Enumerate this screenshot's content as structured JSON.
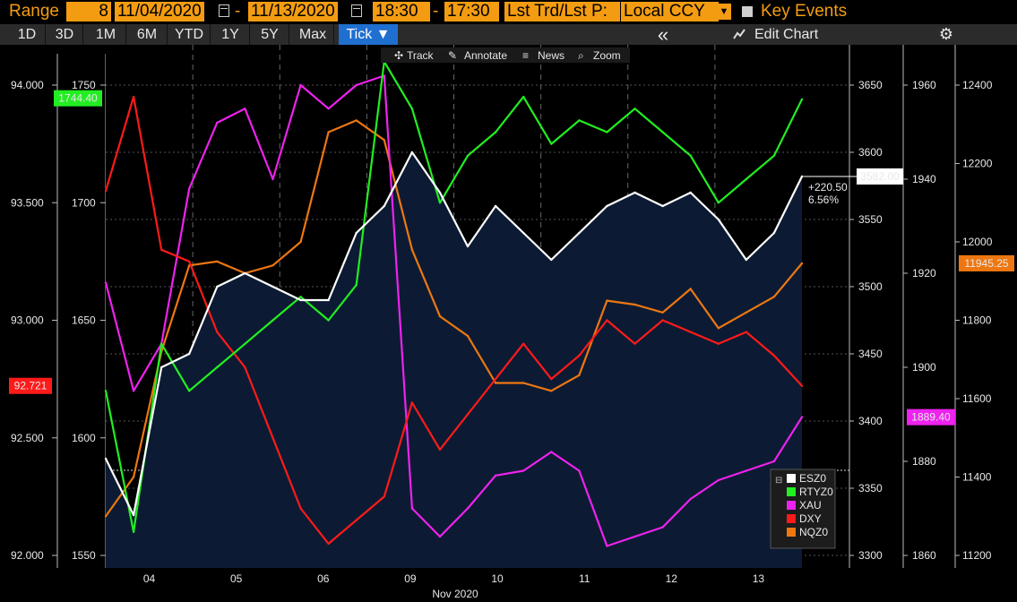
{
  "toolbar": {
    "range_label": "Range",
    "range_count": "8",
    "start_date": "11/04/2020",
    "dash": "-",
    "end_date": "11/13/2020",
    "start_time": "18:30",
    "end_time": "17:30",
    "price_type": "Lst Trd/Lst P:",
    "currency": "Local CCY",
    "key_events_label": "Key Events"
  },
  "range_buttons": [
    "1D",
    "3D",
    "1M",
    "6M",
    "YTD",
    "1Y",
    "5Y",
    "Max"
  ],
  "tick_button": "Tick ▼",
  "collapse_icon": "«",
  "edit_chart": "Edit Chart",
  "chart_tools": {
    "track": "Track",
    "annotate": "Annotate",
    "news": "News",
    "zoom": "Zoom"
  },
  "colors": {
    "ESZ0": "#ffffff",
    "RTYZ0": "#22ee22",
    "XAU": "#ee22ee",
    "DXY": "#ff1a1a",
    "NQZ0": "#ee7711",
    "area": "#0c1b33"
  },
  "chart_data": {
    "type": "line",
    "xlabel": "Nov 2020",
    "day_labels": [
      "04",
      "05",
      "06",
      "09",
      "10",
      "11",
      "12",
      "13"
    ],
    "axes": {
      "DXY": {
        "ticks": [
          "92.000",
          "92.500",
          "93.000",
          "93.500",
          "94.000"
        ],
        "ylim": [
          92.0,
          94.0
        ]
      },
      "RTYZ0": {
        "ticks": [
          "1550",
          "1600",
          "1650",
          "1700",
          "1750"
        ],
        "ylim": [
          1550,
          1750
        ]
      },
      "ESZ0": {
        "ticks": [
          "3300",
          "3350",
          "3400",
          "3450",
          "3500",
          "3550",
          "3600",
          "3650"
        ],
        "ylim": [
          3300,
          3650
        ]
      },
      "XAU": {
        "ticks": [
          "1860",
          "1880",
          "1900",
          "1920",
          "1940",
          "1960"
        ],
        "ylim": [
          1860,
          1960
        ]
      },
      "NQZ0": {
        "ticks": [
          "11200",
          "11400",
          "11600",
          "11800",
          "12000",
          "12200",
          "12400"
        ],
        "ylim": [
          11200,
          12400
        ]
      }
    },
    "last_values": {
      "RTYZ0": "1744.40",
      "DXY": "92.721",
      "ESZ0": "3582.00",
      "NQZ0": "11945.25",
      "XAU": "1889.40"
    },
    "esz0_change": "+220.50",
    "esz0_change_pct": "6.56%",
    "legend": [
      "ESZ0",
      "RTYZ0",
      "XAU",
      "DXY",
      "NQZ0"
    ],
    "series": [
      {
        "name": "ESZ0",
        "axis": "ESZ0",
        "values": [
          3372,
          3330,
          3440,
          3450,
          3500,
          3510,
          3500,
          3490,
          3490,
          3540,
          3560,
          3600,
          3570,
          3530,
          3560,
          3540,
          3520,
          3540,
          3560,
          3570,
          3560,
          3570,
          3550,
          3520,
          3540,
          3582
        ]
      },
      {
        "name": "RTYZ0",
        "axis": "RTYZ0",
        "values": [
          1620,
          1560,
          1640,
          1620,
          1630,
          1640,
          1650,
          1660,
          1650,
          1665,
          1760,
          1740,
          1700,
          1720,
          1730,
          1745,
          1725,
          1735,
          1730,
          1740,
          1730,
          1720,
          1700,
          1710,
          1720,
          1744
        ]
      },
      {
        "name": "XAU",
        "axis": "XAU",
        "values": [
          1918,
          1895,
          1905,
          1938,
          1952,
          1955,
          1940,
          1960,
          1955,
          1960,
          1962,
          1870,
          1864,
          1870,
          1877,
          1878,
          1882,
          1878,
          1862,
          1864,
          1866,
          1872,
          1876,
          1878,
          1880,
          1889.4
        ]
      },
      {
        "name": "DXY",
        "axis": "DXY",
        "values": [
          93.55,
          93.95,
          93.3,
          93.25,
          92.95,
          92.8,
          92.5,
          92.2,
          92.05,
          92.15,
          92.25,
          92.65,
          92.45,
          92.6,
          92.75,
          92.9,
          92.75,
          92.85,
          93.0,
          92.9,
          93.0,
          92.95,
          92.9,
          92.95,
          92.85,
          92.721
        ]
      },
      {
        "name": "NQZ0",
        "axis": "NQZ0",
        "values": [
          11300,
          11400,
          11720,
          11940,
          11950,
          11920,
          11940,
          12000,
          12280,
          12310,
          12260,
          11980,
          11810,
          11760,
          11640,
          11640,
          11620,
          11660,
          11850,
          11840,
          11820,
          11880,
          11780,
          11820,
          11860,
          11945.25
        ]
      }
    ]
  }
}
